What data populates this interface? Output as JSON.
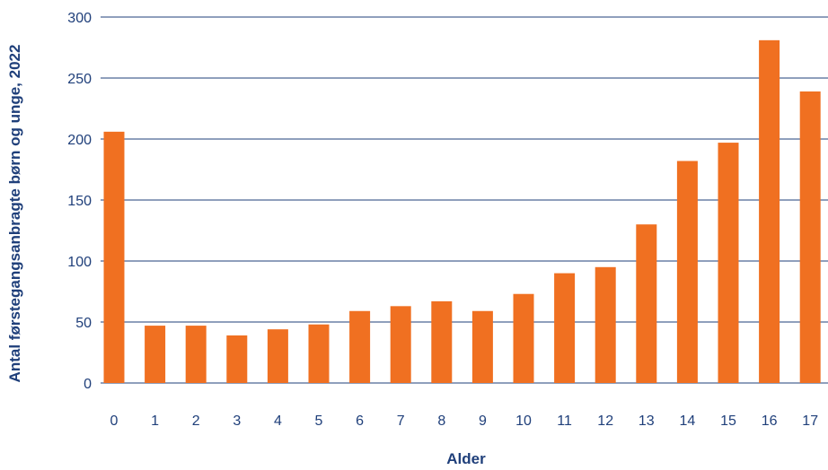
{
  "chart_data": {
    "type": "bar",
    "title": "",
    "xlabel": "Alder",
    "ylabel": "Antal førstegangsanbragte børn og unge, 2022",
    "categories": [
      "0",
      "1",
      "2",
      "3",
      "4",
      "5",
      "6",
      "7",
      "8",
      "9",
      "10",
      "11",
      "12",
      "13",
      "14",
      "15",
      "16",
      "17"
    ],
    "values": [
      206,
      47,
      47,
      39,
      44,
      48,
      59,
      63,
      67,
      59,
      73,
      90,
      95,
      130,
      182,
      197,
      281,
      239
    ],
    "ylim": [
      0,
      300
    ],
    "yticks": [
      "0",
      "50",
      "100",
      "150",
      "200",
      "250",
      "300"
    ],
    "grid": true,
    "legend": "none",
    "colors": {
      "bar": "#f07021",
      "grid": "#1f3f7a",
      "text": "#1f3f7a"
    }
  }
}
